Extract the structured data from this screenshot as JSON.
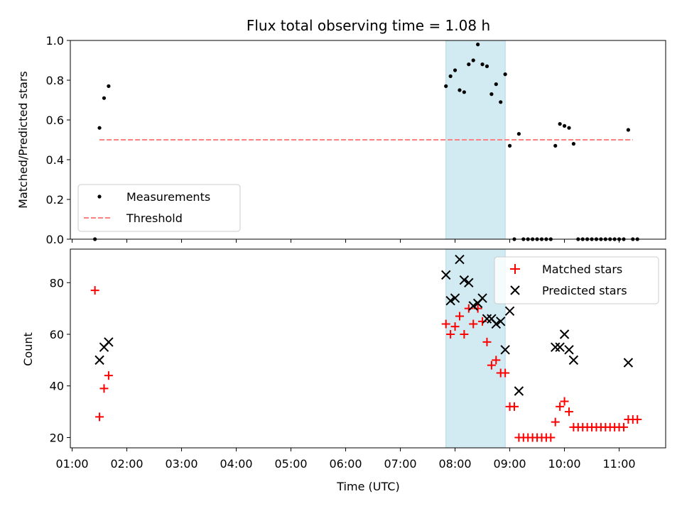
{
  "chart_data": [
    {
      "type": "scatter",
      "title": "Flux total observing time = 1.08 h",
      "xlabel": "",
      "ylabel": "Matched/Predicted stars",
      "ylim": [
        0,
        1.0
      ],
      "yticks": [
        "0.0",
        "0.2",
        "0.4",
        "0.6",
        "0.8",
        "1.0"
      ],
      "xlim": [
        "00:58",
        "11:51"
      ],
      "grid": false,
      "legend": {
        "placement": "bottom-left",
        "entries": [
          "Measurements",
          "Threshold"
        ]
      },
      "highlight_span": {
        "x": [
          "07:50",
          "08:55"
        ],
        "color": "#add8e6"
      },
      "series": [
        {
          "name": "Measurements",
          "color": "#000000",
          "marker": "dot",
          "points": [
            [
              "01:25",
              0.0
            ],
            [
              "01:30",
              0.56
            ],
            [
              "01:35",
              0.71
            ],
            [
              "01:40",
              0.77
            ],
            [
              "07:50",
              0.77
            ],
            [
              "07:55",
              0.82
            ],
            [
              "08:00",
              0.85
            ],
            [
              "08:05",
              0.75
            ],
            [
              "08:10",
              0.74
            ],
            [
              "08:15",
              0.88
            ],
            [
              "08:20",
              0.9
            ],
            [
              "08:25",
              0.98
            ],
            [
              "08:30",
              0.88
            ],
            [
              "08:35",
              0.87
            ],
            [
              "08:40",
              0.73
            ],
            [
              "08:45",
              0.78
            ],
            [
              "08:50",
              0.69
            ],
            [
              "08:55",
              0.83
            ],
            [
              "09:00",
              0.47
            ],
            [
              "09:05",
              0.0
            ],
            [
              "09:10",
              0.53
            ],
            [
              "09:15",
              0.0
            ],
            [
              "09:20",
              0.0
            ],
            [
              "09:25",
              0.0
            ],
            [
              "09:30",
              0.0
            ],
            [
              "09:35",
              0.0
            ],
            [
              "09:40",
              0.0
            ],
            [
              "09:45",
              0.0
            ],
            [
              "09:50",
              0.47
            ],
            [
              "09:55",
              0.58
            ],
            [
              "10:00",
              0.57
            ],
            [
              "10:05",
              0.56
            ],
            [
              "10:10",
              0.48
            ],
            [
              "10:15",
              0.0
            ],
            [
              "10:20",
              0.0
            ],
            [
              "10:25",
              0.0
            ],
            [
              "10:30",
              0.0
            ],
            [
              "10:35",
              0.0
            ],
            [
              "10:40",
              0.0
            ],
            [
              "10:45",
              0.0
            ],
            [
              "10:50",
              0.0
            ],
            [
              "10:55",
              0.0
            ],
            [
              "11:00",
              0.0
            ],
            [
              "11:05",
              0.0
            ],
            [
              "11:10",
              0.55
            ],
            [
              "11:15",
              0.0
            ],
            [
              "11:20",
              0.0
            ]
          ]
        },
        {
          "name": "Threshold",
          "color": "#ff8080",
          "style": "dashed-line",
          "points": [
            [
              "01:30",
              0.5
            ],
            [
              "11:15",
              0.5
            ]
          ]
        }
      ]
    },
    {
      "type": "scatter",
      "title": "",
      "xlabel": "Time (UTC)",
      "ylabel": "Count",
      "ylim": [
        16,
        93
      ],
      "yticks": [
        "20",
        "40",
        "60",
        "80"
      ],
      "xlim": [
        "00:58",
        "11:51"
      ],
      "xticks": [
        "01:00",
        "02:00",
        "03:00",
        "04:00",
        "05:00",
        "06:00",
        "07:00",
        "08:00",
        "09:00",
        "10:00",
        "11:00"
      ],
      "grid": false,
      "legend": {
        "placement": "top-right",
        "entries": [
          "Matched stars",
          "Predicted stars"
        ]
      },
      "highlight_span": {
        "x": [
          "07:50",
          "08:55"
        ],
        "color": "#add8e6"
      },
      "series": [
        {
          "name": "Matched stars",
          "color": "#ff0000",
          "marker": "plus",
          "points": [
            [
              "01:25",
              77
            ],
            [
              "01:30",
              28
            ],
            [
              "01:35",
              39
            ],
            [
              "01:40",
              44
            ],
            [
              "07:50",
              64
            ],
            [
              "07:55",
              60
            ],
            [
              "08:00",
              63
            ],
            [
              "08:05",
              67
            ],
            [
              "08:10",
              60
            ],
            [
              "08:15",
              70
            ],
            [
              "08:20",
              64
            ],
            [
              "08:25",
              70
            ],
            [
              "08:30",
              65
            ],
            [
              "08:35",
              57
            ],
            [
              "08:40",
              48
            ],
            [
              "08:45",
              50
            ],
            [
              "08:50",
              45
            ],
            [
              "08:55",
              45
            ],
            [
              "09:00",
              32
            ],
            [
              "09:05",
              32
            ],
            [
              "09:10",
              20
            ],
            [
              "09:15",
              20
            ],
            [
              "09:20",
              20
            ],
            [
              "09:25",
              20
            ],
            [
              "09:30",
              20
            ],
            [
              "09:35",
              20
            ],
            [
              "09:40",
              20
            ],
            [
              "09:45",
              20
            ],
            [
              "09:50",
              26
            ],
            [
              "09:55",
              32
            ],
            [
              "10:00",
              34
            ],
            [
              "10:05",
              30
            ],
            [
              "10:10",
              24
            ],
            [
              "10:15",
              24
            ],
            [
              "10:20",
              24
            ],
            [
              "10:25",
              24
            ],
            [
              "10:30",
              24
            ],
            [
              "10:35",
              24
            ],
            [
              "10:40",
              24
            ],
            [
              "10:45",
              24
            ],
            [
              "10:50",
              24
            ],
            [
              "10:55",
              24
            ],
            [
              "11:00",
              24
            ],
            [
              "11:05",
              24
            ],
            [
              "11:10",
              27
            ],
            [
              "11:15",
              27
            ],
            [
              "11:20",
              27
            ]
          ]
        },
        {
          "name": "Predicted stars",
          "color": "#000000",
          "marker": "x",
          "points": [
            [
              "01:30",
              50
            ],
            [
              "01:35",
              55
            ],
            [
              "01:40",
              57
            ],
            [
              "07:50",
              83
            ],
            [
              "07:55",
              73
            ],
            [
              "08:00",
              74
            ],
            [
              "08:05",
              89
            ],
            [
              "08:10",
              81
            ],
            [
              "08:15",
              80
            ],
            [
              "08:20",
              71
            ],
            [
              "08:25",
              72
            ],
            [
              "08:30",
              74
            ],
            [
              "08:35",
              66
            ],
            [
              "08:40",
              66
            ],
            [
              "08:45",
              64
            ],
            [
              "08:50",
              65
            ],
            [
              "08:55",
              54
            ],
            [
              "09:00",
              69
            ],
            [
              "09:10",
              38
            ],
            [
              "09:50",
              55
            ],
            [
              "09:55",
              55
            ],
            [
              "10:00",
              60
            ],
            [
              "10:05",
              54
            ],
            [
              "10:10",
              50
            ],
            [
              "11:10",
              49
            ]
          ]
        }
      ]
    }
  ]
}
